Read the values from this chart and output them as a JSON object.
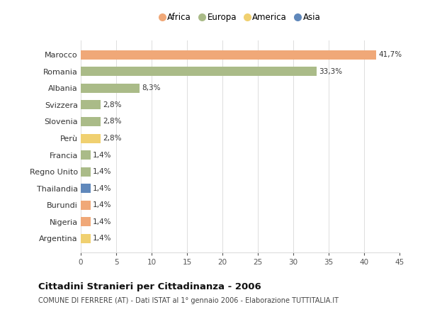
{
  "countries": [
    "Marocco",
    "Romania",
    "Albania",
    "Svizzera",
    "Slovenia",
    "Perù",
    "Francia",
    "Regno Unito",
    "Thailandia",
    "Burundi",
    "Nigeria",
    "Argentina"
  ],
  "values": [
    41.7,
    33.3,
    8.3,
    2.8,
    2.8,
    2.8,
    1.4,
    1.4,
    1.4,
    1.4,
    1.4,
    1.4
  ],
  "labels": [
    "41,7%",
    "33,3%",
    "8,3%",
    "2,8%",
    "2,8%",
    "2,8%",
    "1,4%",
    "1,4%",
    "1,4%",
    "1,4%",
    "1,4%",
    "1,4%"
  ],
  "continents": [
    "Africa",
    "Europa",
    "Europa",
    "Europa",
    "Europa",
    "America",
    "Europa",
    "Europa",
    "Asia",
    "Africa",
    "Africa",
    "America"
  ],
  "colors": {
    "Africa": "#F0A878",
    "Europa": "#AABB88",
    "America": "#F0D070",
    "Asia": "#6088BB"
  },
  "legend_order": [
    "Africa",
    "Europa",
    "America",
    "Asia"
  ],
  "xlim": [
    0,
    45
  ],
  "xticks": [
    0,
    5,
    10,
    15,
    20,
    25,
    30,
    35,
    40,
    45
  ],
  "title": "Cittadini Stranieri per Cittadinanza - 2006",
  "subtitle": "COMUNE DI FERRERE (AT) - Dati ISTAT al 1° gennaio 2006 - Elaborazione TUTTITALIA.IT",
  "background_color": "#ffffff",
  "grid_color": "#dddddd"
}
